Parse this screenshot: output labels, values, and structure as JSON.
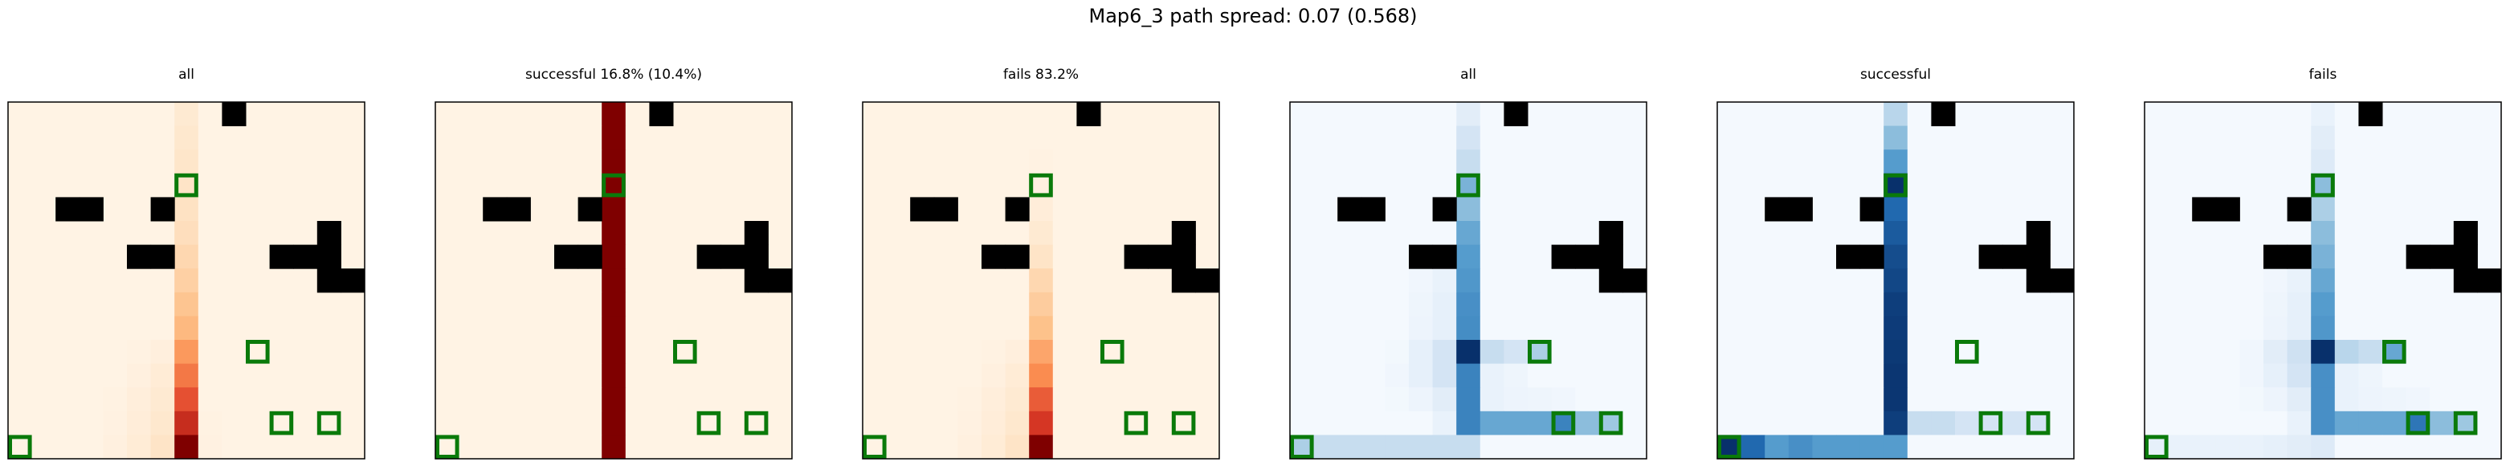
{
  "suptitle": "Map6_3 path spread: 0.07 (0.568)",
  "colors": {
    "obstacle": "#000000",
    "goal_outline": "#0a7a0a",
    "frame": "#000000"
  },
  "chart_data": [
    {
      "type": "heatmap",
      "title": "all",
      "colormap": "Oranges-to-DarkRed",
      "grid_size": [
        15,
        15
      ],
      "obstacles": [
        [
          9,
          0
        ],
        [
          2,
          4
        ],
        [
          3,
          4
        ],
        [
          6,
          4
        ],
        [
          13,
          5
        ],
        [
          5,
          6
        ],
        [
          6,
          6
        ],
        [
          11,
          6
        ],
        [
          12,
          6
        ],
        [
          13,
          6
        ],
        [
          13,
          7
        ],
        [
          14,
          7
        ]
      ],
      "goals": [
        [
          7,
          3
        ],
        [
          10,
          10
        ],
        [
          0,
          14
        ],
        [
          11,
          13
        ],
        [
          13,
          13
        ]
      ],
      "column_intensity": {
        "7": [
          0.12,
          0.14,
          0.16,
          0.18,
          0.2,
          0.22,
          0.26,
          0.3,
          0.36,
          0.42,
          0.55,
          0.65,
          0.75,
          0.85,
          1.0
        ],
        "6": [
          0,
          0,
          0,
          0,
          0,
          0,
          0,
          0,
          0,
          0,
          0.06,
          0.1,
          0.12,
          0.14,
          0.18
        ],
        "5": [
          0,
          0,
          0,
          0,
          0,
          0,
          0,
          0,
          0,
          0,
          0.03,
          0.05,
          0.07,
          0.08,
          0.1
        ],
        "4": [
          0,
          0,
          0,
          0,
          0,
          0,
          0,
          0,
          0,
          0,
          0,
          0.02,
          0.03,
          0.04,
          0.05
        ],
        "8": [
          0,
          0,
          0,
          0,
          0,
          0,
          0,
          0,
          0,
          0,
          0,
          0.02,
          0.02,
          0.03,
          0.04
        ]
      },
      "background": 0.02
    },
    {
      "type": "heatmap",
      "title": "successful 16.8% (10.4%)",
      "colormap": "Oranges-to-DarkRed",
      "grid_size": [
        15,
        15
      ],
      "obstacles": [
        [
          9,
          0
        ],
        [
          2,
          4
        ],
        [
          3,
          4
        ],
        [
          6,
          4
        ],
        [
          13,
          5
        ],
        [
          5,
          6
        ],
        [
          6,
          6
        ],
        [
          11,
          6
        ],
        [
          12,
          6
        ],
        [
          13,
          6
        ],
        [
          13,
          7
        ],
        [
          14,
          7
        ]
      ],
      "goals": [
        [
          7,
          3
        ],
        [
          10,
          10
        ],
        [
          0,
          14
        ],
        [
          11,
          13
        ],
        [
          13,
          13
        ]
      ],
      "column_intensity": {
        "7": [
          1,
          1,
          1,
          1,
          1,
          1,
          1,
          1,
          1,
          1,
          1,
          1,
          1,
          1,
          1
        ]
      },
      "background": 0.02
    },
    {
      "type": "heatmap",
      "title": "fails 83.2%",
      "colormap": "Oranges-to-DarkRed",
      "grid_size": [
        15,
        15
      ],
      "obstacles": [
        [
          9,
          0
        ],
        [
          2,
          4
        ],
        [
          3,
          4
        ],
        [
          6,
          4
        ],
        [
          13,
          5
        ],
        [
          5,
          6
        ],
        [
          6,
          6
        ],
        [
          11,
          6
        ],
        [
          12,
          6
        ],
        [
          13,
          6
        ],
        [
          13,
          7
        ],
        [
          14,
          7
        ]
      ],
      "goals": [
        [
          7,
          3
        ],
        [
          10,
          10
        ],
        [
          0,
          14
        ],
        [
          11,
          13
        ],
        [
          13,
          13
        ]
      ],
      "column_intensity": {
        "7": [
          0.02,
          0.02,
          0.03,
          0.05,
          0.08,
          0.12,
          0.18,
          0.26,
          0.32,
          0.38,
          0.5,
          0.6,
          0.72,
          0.82,
          1.0
        ],
        "6": [
          0,
          0,
          0,
          0,
          0,
          0,
          0,
          0,
          0,
          0,
          0.06,
          0.1,
          0.12,
          0.14,
          0.18
        ],
        "5": [
          0,
          0,
          0,
          0,
          0,
          0,
          0,
          0,
          0,
          0,
          0.03,
          0.05,
          0.07,
          0.08,
          0.1
        ],
        "4": [
          0,
          0,
          0,
          0,
          0,
          0,
          0,
          0,
          0,
          0,
          0,
          0.02,
          0.03,
          0.04,
          0.05
        ]
      },
      "background": 0.02
    },
    {
      "type": "heatmap",
      "title": "all",
      "colormap": "Blues",
      "grid_size": [
        15,
        15
      ],
      "obstacles": [
        [
          9,
          0
        ],
        [
          2,
          4
        ],
        [
          3,
          4
        ],
        [
          6,
          4
        ],
        [
          13,
          5
        ],
        [
          5,
          6
        ],
        [
          6,
          6
        ],
        [
          11,
          6
        ],
        [
          12,
          6
        ],
        [
          13,
          6
        ],
        [
          13,
          7
        ],
        [
          14,
          7
        ]
      ],
      "goals": [
        [
          7,
          3
        ],
        [
          10,
          10
        ],
        [
          0,
          14
        ],
        [
          11,
          13
        ],
        [
          13,
          13
        ]
      ],
      "cells": [
        [
          7,
          0,
          0.12
        ],
        [
          7,
          1,
          0.2
        ],
        [
          7,
          2,
          0.25
        ],
        [
          7,
          3,
          0.5
        ],
        [
          7,
          4,
          0.45
        ],
        [
          7,
          5,
          0.55
        ],
        [
          7,
          6,
          0.6
        ],
        [
          7,
          7,
          0.62
        ],
        [
          7,
          8,
          0.65
        ],
        [
          7,
          9,
          0.66
        ],
        [
          7,
          10,
          1.0
        ],
        [
          7,
          11,
          0.7
        ],
        [
          7,
          12,
          0.7
        ],
        [
          7,
          13,
          0.7
        ],
        [
          7,
          14,
          0.25
        ],
        [
          6,
          7,
          0.08
        ],
        [
          6,
          8,
          0.1
        ],
        [
          6,
          9,
          0.1
        ],
        [
          6,
          10,
          0.2
        ],
        [
          6,
          11,
          0.2
        ],
        [
          6,
          12,
          0.12
        ],
        [
          6,
          13,
          0.08
        ],
        [
          6,
          14,
          0.25
        ],
        [
          5,
          7,
          0.04
        ],
        [
          5,
          8,
          0.05
        ],
        [
          5,
          9,
          0.06
        ],
        [
          5,
          10,
          0.1
        ],
        [
          5,
          11,
          0.1
        ],
        [
          5,
          12,
          0.06
        ],
        [
          5,
          14,
          0.25
        ],
        [
          4,
          10,
          0.03
        ],
        [
          4,
          11,
          0.04
        ],
        [
          4,
          12,
          0.03
        ],
        [
          4,
          14,
          0.25
        ],
        [
          3,
          14,
          0.25
        ],
        [
          2,
          14,
          0.25
        ],
        [
          1,
          14,
          0.25
        ],
        [
          0,
          14,
          0.35
        ],
        [
          8,
          10,
          0.25
        ],
        [
          9,
          10,
          0.2
        ],
        [
          10,
          10,
          0.35
        ],
        [
          8,
          11,
          0.08
        ],
        [
          9,
          11,
          0.05
        ],
        [
          8,
          13,
          0.55
        ],
        [
          9,
          13,
          0.55
        ],
        [
          10,
          13,
          0.55
        ],
        [
          11,
          13,
          0.7
        ],
        [
          12,
          13,
          0.45
        ],
        [
          13,
          13,
          0.4
        ],
        [
          8,
          12,
          0.08
        ],
        [
          9,
          12,
          0.06
        ],
        [
          10,
          12,
          0.05
        ],
        [
          11,
          12,
          0.04
        ]
      ],
      "background": 0.02
    },
    {
      "type": "heatmap",
      "title": "successful",
      "colormap": "Blues",
      "grid_size": [
        15,
        15
      ],
      "obstacles": [
        [
          9,
          0
        ],
        [
          2,
          4
        ],
        [
          3,
          4
        ],
        [
          6,
          4
        ],
        [
          13,
          5
        ],
        [
          5,
          6
        ],
        [
          6,
          6
        ],
        [
          11,
          6
        ],
        [
          12,
          6
        ],
        [
          13,
          6
        ],
        [
          13,
          7
        ],
        [
          14,
          7
        ]
      ],
      "goals": [
        [
          7,
          3
        ],
        [
          10,
          10
        ],
        [
          0,
          14
        ],
        [
          11,
          13
        ],
        [
          13,
          13
        ]
      ],
      "cells": [
        [
          7,
          0,
          0.3
        ],
        [
          7,
          1,
          0.45
        ],
        [
          7,
          2,
          0.6
        ],
        [
          7,
          3,
          1.0
        ],
        [
          7,
          4,
          0.8
        ],
        [
          7,
          5,
          0.85
        ],
        [
          7,
          6,
          0.9
        ],
        [
          7,
          7,
          0.92
        ],
        [
          7,
          8,
          0.95
        ],
        [
          7,
          9,
          0.96
        ],
        [
          7,
          10,
          0.97
        ],
        [
          7,
          11,
          0.98
        ],
        [
          7,
          12,
          0.98
        ],
        [
          7,
          13,
          0.95
        ],
        [
          7,
          14,
          0.6
        ],
        [
          6,
          14,
          0.6
        ],
        [
          5,
          14,
          0.6
        ],
        [
          4,
          14,
          0.6
        ],
        [
          3,
          14,
          0.65
        ],
        [
          2,
          14,
          0.6
        ],
        [
          1,
          14,
          0.8
        ],
        [
          0,
          14,
          1.0
        ],
        [
          8,
          13,
          0.25
        ],
        [
          9,
          13,
          0.25
        ],
        [
          10,
          13,
          0.2
        ],
        [
          11,
          13,
          0.2
        ],
        [
          12,
          13,
          0.2
        ],
        [
          13,
          13,
          0.2
        ]
      ],
      "background": 0.02
    },
    {
      "type": "heatmap",
      "title": "fails",
      "colormap": "Blues",
      "grid_size": [
        15,
        15
      ],
      "obstacles": [
        [
          9,
          0
        ],
        [
          2,
          4
        ],
        [
          3,
          4
        ],
        [
          6,
          4
        ],
        [
          13,
          5
        ],
        [
          5,
          6
        ],
        [
          6,
          6
        ],
        [
          11,
          6
        ],
        [
          12,
          6
        ],
        [
          13,
          6
        ],
        [
          13,
          7
        ],
        [
          14,
          7
        ]
      ],
      "goals": [
        [
          7,
          3
        ],
        [
          10,
          10
        ],
        [
          0,
          14
        ],
        [
          11,
          13
        ],
        [
          13,
          13
        ]
      ],
      "cells": [
        [
          7,
          0,
          0.08
        ],
        [
          7,
          1,
          0.12
        ],
        [
          7,
          2,
          0.15
        ],
        [
          7,
          3,
          0.45
        ],
        [
          7,
          4,
          0.35
        ],
        [
          7,
          5,
          0.45
        ],
        [
          7,
          6,
          0.5
        ],
        [
          7,
          7,
          0.55
        ],
        [
          7,
          8,
          0.6
        ],
        [
          7,
          9,
          0.62
        ],
        [
          7,
          10,
          1.0
        ],
        [
          7,
          11,
          0.65
        ],
        [
          7,
          12,
          0.65
        ],
        [
          7,
          13,
          0.65
        ],
        [
          7,
          14,
          0.15
        ],
        [
          6,
          7,
          0.08
        ],
        [
          6,
          8,
          0.1
        ],
        [
          6,
          9,
          0.1
        ],
        [
          6,
          10,
          0.22
        ],
        [
          6,
          11,
          0.2
        ],
        [
          6,
          12,
          0.12
        ],
        [
          6,
          13,
          0.08
        ],
        [
          6,
          14,
          0.12
        ],
        [
          5,
          7,
          0.04
        ],
        [
          5,
          8,
          0.05
        ],
        [
          5,
          9,
          0.06
        ],
        [
          5,
          10,
          0.12
        ],
        [
          5,
          11,
          0.1
        ],
        [
          5,
          12,
          0.06
        ],
        [
          5,
          14,
          0.1
        ],
        [
          4,
          10,
          0.04
        ],
        [
          4,
          11,
          0.04
        ],
        [
          4,
          12,
          0.03
        ],
        [
          4,
          14,
          0.08
        ],
        [
          3,
          14,
          0.08
        ],
        [
          2,
          14,
          0.08
        ],
        [
          1,
          14,
          0.08
        ],
        [
          0,
          14,
          0.1
        ],
        [
          8,
          10,
          0.3
        ],
        [
          9,
          10,
          0.25
        ],
        [
          10,
          10,
          0.55
        ],
        [
          8,
          11,
          0.08
        ],
        [
          9,
          11,
          0.05
        ],
        [
          8,
          13,
          0.55
        ],
        [
          9,
          13,
          0.55
        ],
        [
          10,
          13,
          0.55
        ],
        [
          11,
          13,
          0.75
        ],
        [
          12,
          13,
          0.45
        ],
        [
          13,
          13,
          0.4
        ],
        [
          8,
          12,
          0.08
        ],
        [
          9,
          12,
          0.06
        ],
        [
          10,
          12,
          0.05
        ],
        [
          11,
          12,
          0.04
        ]
      ],
      "background": 0.02
    }
  ]
}
